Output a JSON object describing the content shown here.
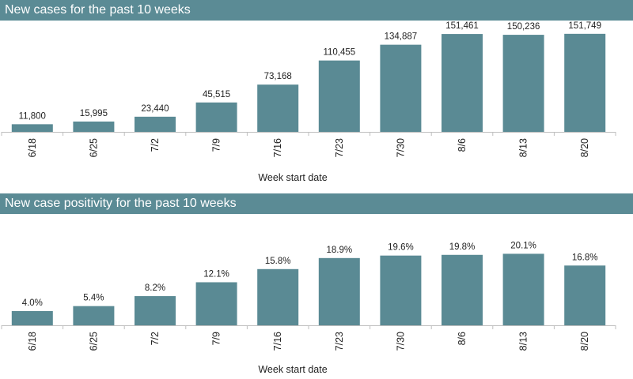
{
  "colors": {
    "header": "#5b8b95",
    "bar": "#5a8a94",
    "axis": "#bfbfbf"
  },
  "panels": [
    {
      "title": "New cases for the past 10 weeks"
    },
    {
      "title": "New case positivity for the past 10 weeks"
    }
  ],
  "chart_data": [
    {
      "type": "bar",
      "title": "New cases for the past 10 weeks",
      "xlabel": "Week start date",
      "ylabel": "",
      "categories": [
        "6/18",
        "6/25",
        "7/2",
        "7/9",
        "7/16",
        "7/23",
        "7/30",
        "8/6",
        "8/13",
        "8/20"
      ],
      "values": [
        11800,
        15995,
        23440,
        45515,
        73168,
        110455,
        134887,
        151461,
        150236,
        151749
      ],
      "data_labels": [
        "11,800",
        "15,995",
        "23,440",
        "45,515",
        "73,168",
        "110,455",
        "134,887",
        "151,461",
        "150,236",
        "151,749"
      ],
      "ylim": [
        0,
        165000
      ],
      "grid": false,
      "legend": "none"
    },
    {
      "type": "bar",
      "title": "New case positivity for the past 10 weeks",
      "xlabel": "Week start date",
      "ylabel": "",
      "categories": [
        "6/18",
        "6/25",
        "7/2",
        "7/9",
        "7/16",
        "7/23",
        "7/30",
        "8/6",
        "8/13",
        "8/20"
      ],
      "values": [
        4.0,
        5.4,
        8.2,
        12.1,
        15.8,
        18.9,
        19.6,
        19.8,
        20.1,
        16.8
      ],
      "data_labels": [
        "4.0%",
        "5.4%",
        "8.2%",
        "12.1%",
        "15.8%",
        "18.9%",
        "19.6%",
        "19.8%",
        "20.1%",
        "16.8%"
      ],
      "ylim": [
        0,
        23.3
      ],
      "grid": false,
      "legend": "none"
    }
  ]
}
